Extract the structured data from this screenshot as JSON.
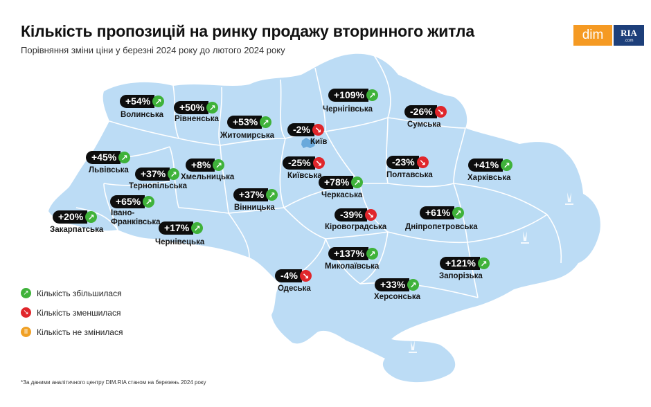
{
  "title": "Кількість пропозицій на ринку продажу вторинного житла",
  "subtitle": "Порівняння зміни ціни у березні 2024 року до лютого 2024 року",
  "logo": {
    "left": "dim",
    "right": "RIA",
    "right_small": ".com"
  },
  "colors": {
    "map_fill": "#bcdcf5",
    "region_border": "#ffffff",
    "up": "#3fb23a",
    "down": "#e0262b",
    "same": "#f0a024",
    "badge": "#0d0d0d"
  },
  "legend": [
    {
      "icon": "arrow-up-right-icon",
      "status": "up",
      "symbol": "↗",
      "label": "Кількість збільшилася"
    },
    {
      "icon": "arrow-down-right-icon",
      "status": "down",
      "symbol": "↘",
      "label": "Кількість зменшилася"
    },
    {
      "icon": "pause-icon",
      "status": "same",
      "symbol": "ІІ",
      "label": "Кількість не змінилася"
    }
  ],
  "footnote": "*За даними аналітичного центру DIM.RIA станом на березень 2024 року",
  "chart_data": {
    "type": "map",
    "unit": "%",
    "regions": [
      {
        "name": "Волинська",
        "value": 54,
        "label": "+54%",
        "status": "up"
      },
      {
        "name": "Рівненська",
        "value": 50,
        "label": "+50%",
        "status": "up"
      },
      {
        "name": "Житомирська",
        "value": 53,
        "label": "+53%",
        "status": "up"
      },
      {
        "name": "Чернігівська",
        "value": 109,
        "label": "+109%",
        "status": "up"
      },
      {
        "name": "Сумська",
        "value": -26,
        "label": "-26%",
        "status": "down"
      },
      {
        "name": "Київ",
        "value": -2,
        "label": "-2%",
        "status": "down"
      },
      {
        "name": "Львівська",
        "value": 45,
        "label": "+45%",
        "status": "up"
      },
      {
        "name": "Хмельницька",
        "value": 8,
        "label": "+8%",
        "status": "up"
      },
      {
        "name": "Тернопільська",
        "value": 37,
        "label": "+37%",
        "status": "up"
      },
      {
        "name": "Київська",
        "value": -25,
        "label": "-25%",
        "status": "down"
      },
      {
        "name": "Полтавська",
        "value": -23,
        "label": "-23%",
        "status": "down"
      },
      {
        "name": "Харківська",
        "value": 41,
        "label": "+41%",
        "status": "up"
      },
      {
        "name": "Черкаська",
        "value": 78,
        "label": "+78%",
        "status": "up"
      },
      {
        "name": "Вінницька",
        "value": 37,
        "label": "+37%",
        "status": "up"
      },
      {
        "name": "Івано-Франківська",
        "value": 65,
        "label": "+65%",
        "status": "up"
      },
      {
        "name": "Закарпатська",
        "value": 20,
        "label": "+20%",
        "status": "up"
      },
      {
        "name": "Кіровоградська",
        "value": -39,
        "label": "-39%",
        "status": "down"
      },
      {
        "name": "Дніпропетровська",
        "value": 61,
        "label": "+61%",
        "status": "up"
      },
      {
        "name": "Чернівецька",
        "value": 17,
        "label": "+17%",
        "status": "up"
      },
      {
        "name": "Миколаївська",
        "value": 137,
        "label": "+137%",
        "status": "up"
      },
      {
        "name": "Запорізька",
        "value": 121,
        "label": "+121%",
        "status": "up"
      },
      {
        "name": "Одеська",
        "value": -4,
        "label": "-4%",
        "status": "down"
      },
      {
        "name": "Херсонська",
        "value": 33,
        "label": "+33%",
        "status": "up"
      }
    ]
  }
}
